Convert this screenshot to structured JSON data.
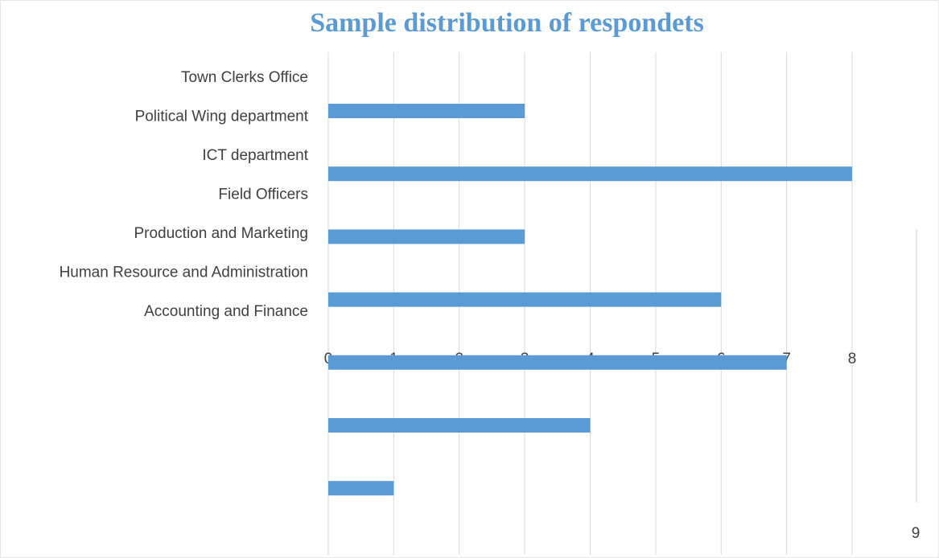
{
  "chart_data": {
    "type": "bar",
    "orientation": "horizontal",
    "title": "Sample distribution of respondets",
    "categories": [
      "Town Clerks Office",
      "Political Wing department",
      "ICT department",
      "Field Officers",
      "Production and Marketing",
      "Human Resource and Administration",
      "Accounting and Finance"
    ],
    "values": [
      3,
      8,
      3,
      6,
      7,
      4,
      1
    ],
    "color": "#5b9bd5",
    "xlim": [
      0,
      8
    ],
    "xticks": [
      0,
      1,
      2,
      3,
      4,
      5,
      6,
      7,
      8
    ],
    "grid": true
  },
  "page_number": "9"
}
